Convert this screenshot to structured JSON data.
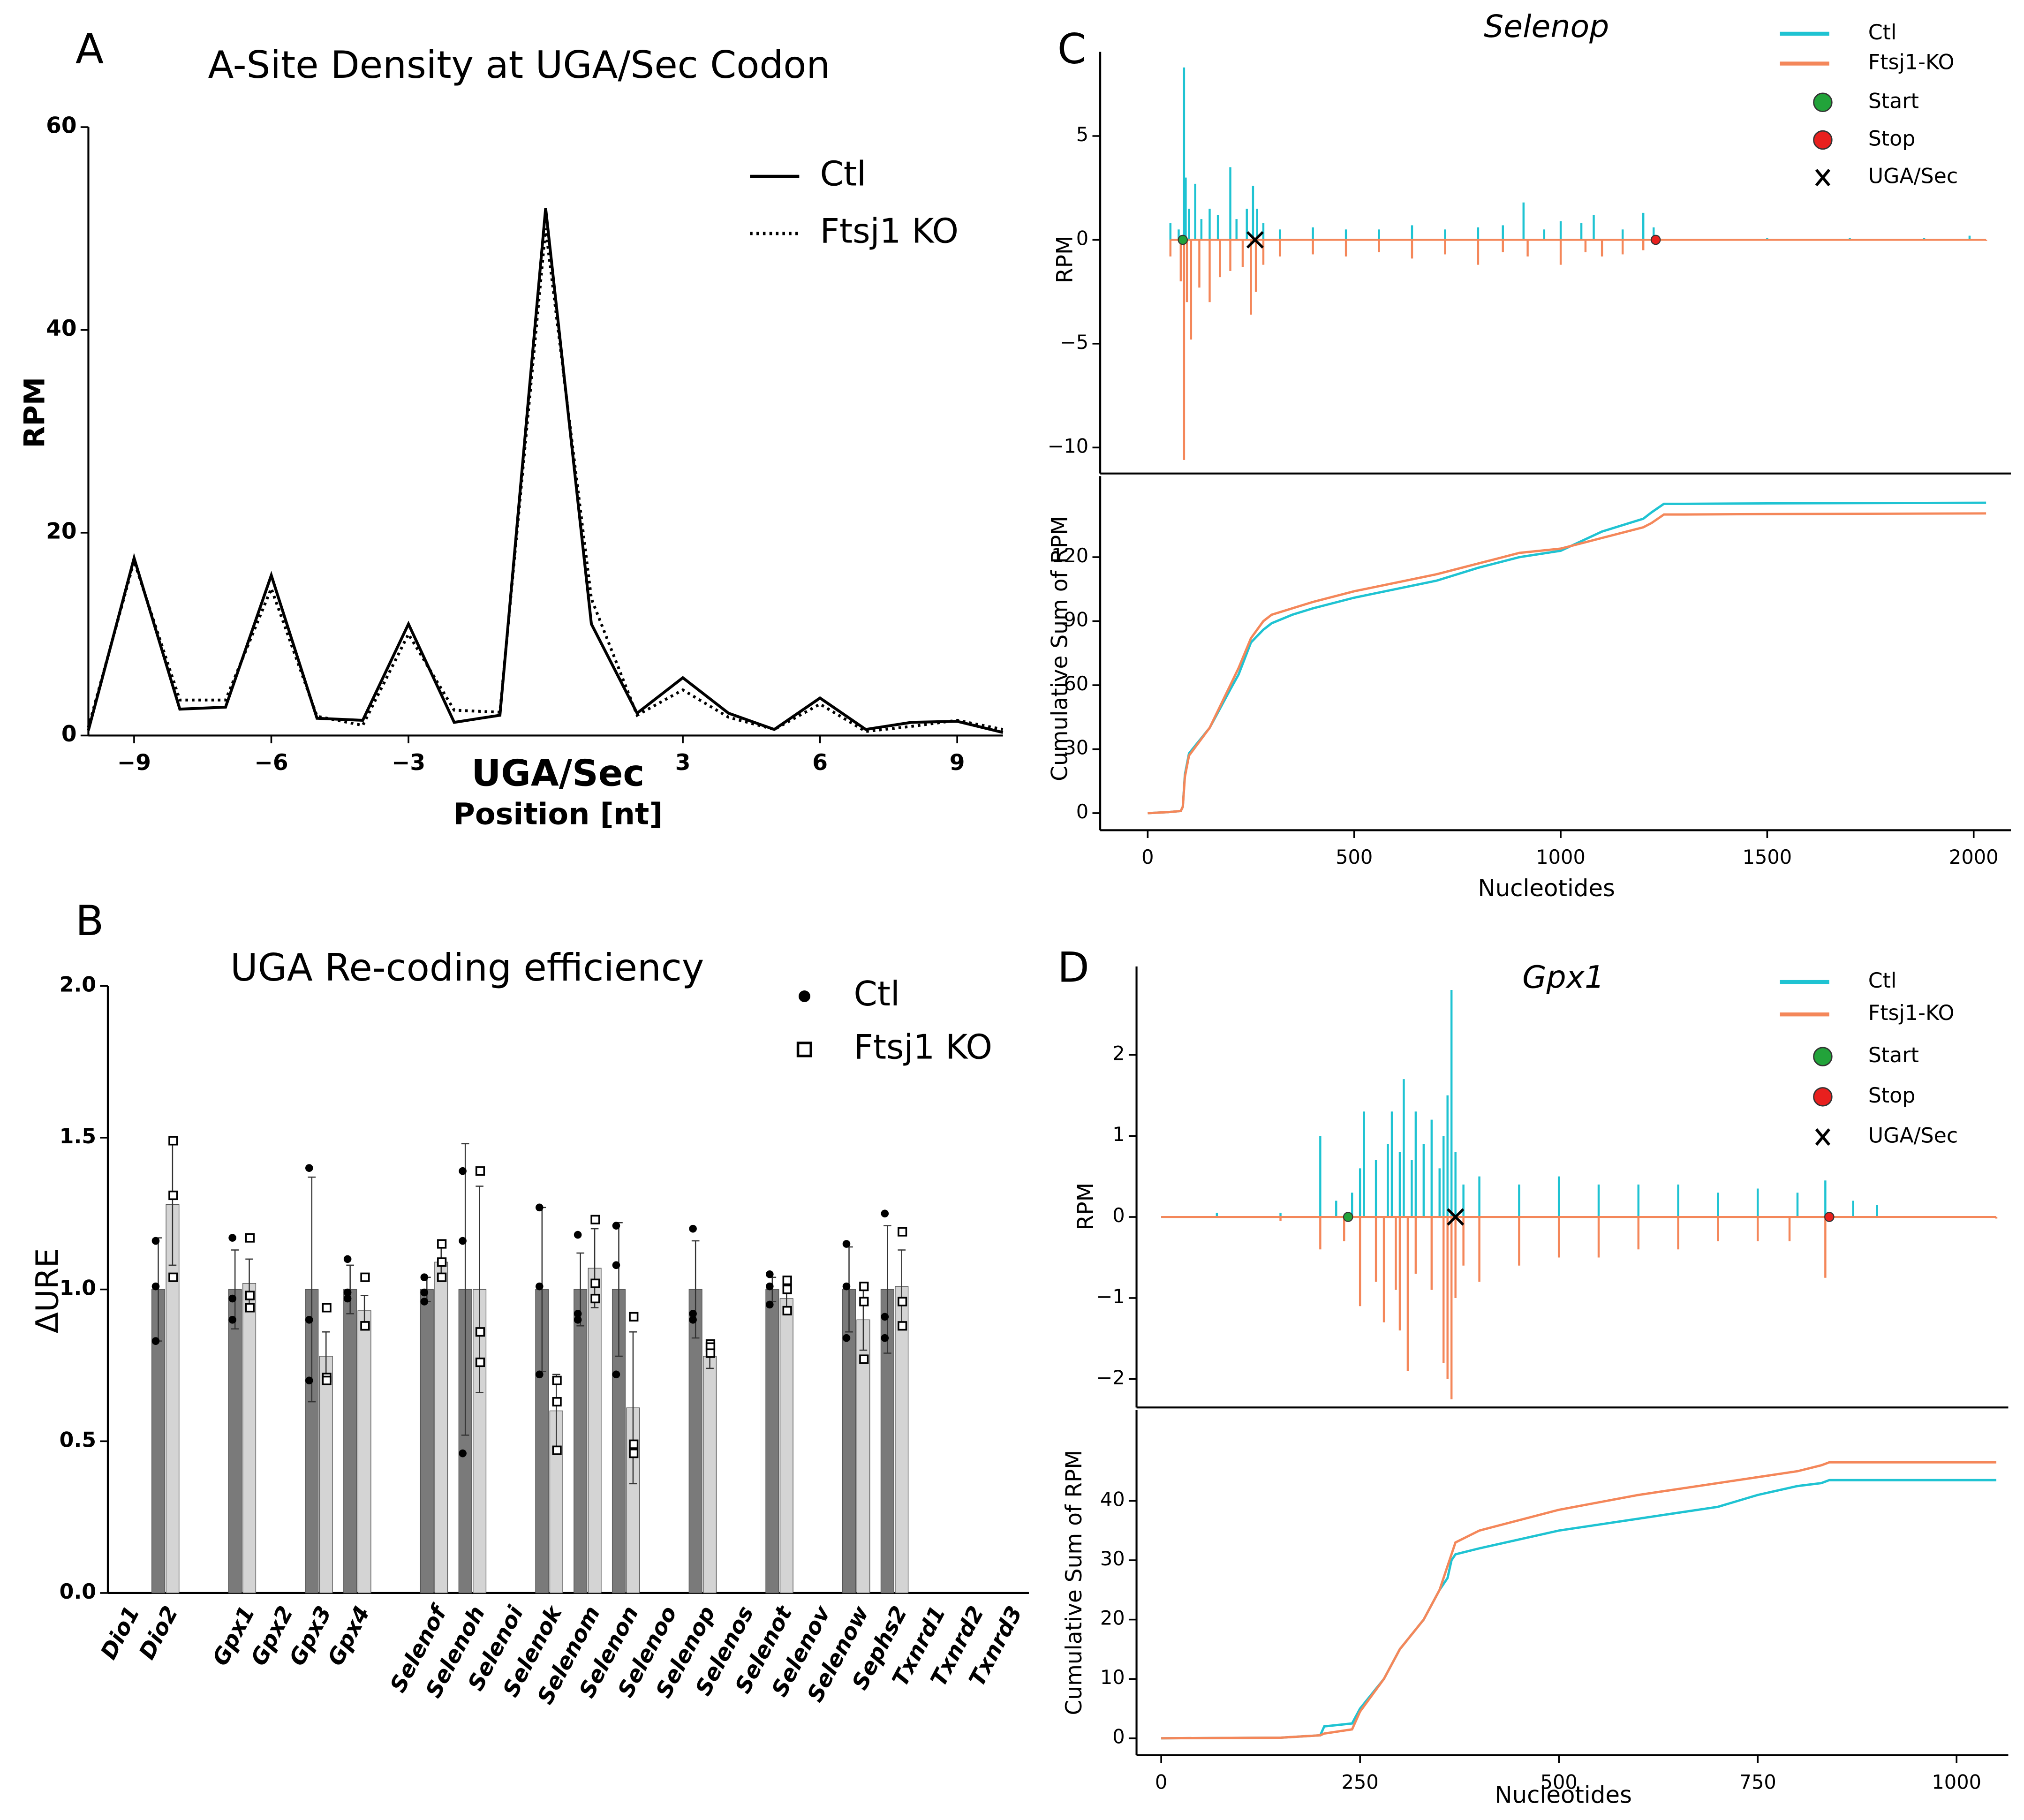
{
  "chart_data": [
    {
      "type": "line",
      "panel": "A",
      "title": "A-Site Density at UGA/Sec Codon",
      "ylabel": "RPM",
      "xlabel": "Position [nt]",
      "annotation": "UGA/Sec",
      "x": [
        -10,
        -9,
        -8,
        -7,
        -6,
        -5,
        -4,
        -3,
        -2,
        -1,
        0,
        1,
        2,
        3,
        4,
        5,
        6,
        7,
        8,
        9,
        10
      ],
      "series": [
        {
          "name": "Ctl",
          "color": "#000000",
          "style": "solid",
          "values": [
            0.5,
            17.5,
            2.6,
            2.8,
            15.8,
            1.7,
            1.5,
            11,
            1.3,
            2,
            52,
            11,
            2.2,
            5.7,
            2.2,
            0.6,
            3.7,
            0.6,
            1.3,
            1.4,
            0.3
          ]
        },
        {
          "name": "Ftsj1 KO",
          "color": "#000000",
          "style": "dotted",
          "values": [
            0.8,
            17.2,
            3.5,
            3.5,
            14.5,
            1.9,
            1.0,
            10,
            2.5,
            2.3,
            50,
            13.5,
            2.0,
            4.5,
            1.8,
            0.6,
            3.1,
            0.4,
            0.9,
            1.5,
            0.6
          ]
        }
      ],
      "xlim": [
        -10,
        10
      ],
      "xticks": [
        {
          "value": -9,
          "label": "−9"
        },
        {
          "value": -6,
          "label": "−6"
        },
        {
          "value": -3,
          "label": "−3"
        },
        3,
        6,
        9
      ],
      "ylim": [
        0,
        60
      ],
      "yticks": [
        0,
        20,
        40,
        60
      ]
    },
    {
      "type": "bar",
      "panel": "B",
      "title": "UGA Re-coding efficiency",
      "ylabel": "ΔURE",
      "categories": [
        "Dio1",
        "Dio2",
        null,
        "Gpx1",
        "Gpx2",
        "Gpx3",
        "Gpx4",
        null,
        "Selenof",
        "Selenoh",
        "Selenoi",
        "Selenok",
        "Selenom",
        "Selenon",
        "Selenoo",
        "Selenop",
        "Selenos",
        "Selenot",
        "Selenov",
        "Selenow",
        "Sephs2",
        "Txnrd1",
        "Txnrd2",
        "Txnrd3"
      ],
      "series": [
        {
          "name": "Ctl",
          "color": "#7a7a7a",
          "marker": "dot",
          "values": [
            null,
            1.0,
            null,
            1.0,
            null,
            1.0,
            1.0,
            null,
            1.0,
            1.0,
            null,
            1.0,
            1.0,
            1.0,
            null,
            1.0,
            null,
            1.0,
            null,
            1.0,
            1.0,
            null,
            null,
            null
          ],
          "errors": [
            null,
            0.17,
            null,
            0.13,
            null,
            0.37,
            0.08,
            null,
            0.04,
            0.48,
            null,
            0.27,
            0.12,
            0.22,
            null,
            0.16,
            null,
            0.04,
            null,
            0.14,
            0.21,
            null,
            null,
            null
          ],
          "points": [
            null,
            [
              1.16,
              1.01,
              0.83
            ],
            null,
            [
              1.17,
              0.97,
              0.9
            ],
            null,
            [
              1.4,
              0.9,
              0.7
            ],
            [
              1.1,
              0.99,
              0.97
            ],
            null,
            [
              1.04,
              0.99,
              0.96
            ],
            [
              1.39,
              1.16,
              0.46
            ],
            null,
            [
              1.27,
              1.01,
              0.72
            ],
            [
              1.18,
              0.92,
              0.9
            ],
            [
              1.21,
              1.08,
              0.72
            ],
            null,
            [
              1.2,
              0.92,
              0.9
            ],
            null,
            [
              1.05,
              1.01,
              0.95
            ],
            null,
            [
              1.15,
              1.01,
              0.84
            ],
            [
              1.25,
              0.91,
              0.84
            ],
            null,
            null,
            null
          ]
        },
        {
          "name": "Ftsj1 KO",
          "color": "#d4d4d4",
          "marker": "square",
          "values": [
            null,
            1.28,
            null,
            1.02,
            null,
            0.78,
            0.93,
            null,
            1.09,
            1.0,
            null,
            0.6,
            1.07,
            0.61,
            null,
            0.78,
            null,
            0.97,
            null,
            0.9,
            1.01,
            null,
            null,
            null
          ],
          "errors": [
            null,
            0.2,
            null,
            0.08,
            null,
            0.08,
            0.05,
            null,
            0.05,
            0.34,
            null,
            0.12,
            0.13,
            0.25,
            null,
            0.04,
            null,
            0.05,
            null,
            0.1,
            0.12,
            null,
            null,
            null
          ],
          "points": [
            null,
            [
              1.49,
              1.31,
              1.04
            ],
            null,
            [
              1.17,
              0.98,
              0.94
            ],
            null,
            [
              0.94,
              0.71,
              0.7
            ],
            [
              1.04,
              0.88,
              0.88
            ],
            null,
            [
              1.15,
              1.09,
              1.04
            ],
            [
              1.39,
              0.86,
              0.76
            ],
            null,
            [
              0.7,
              0.63,
              0.47
            ],
            [
              1.23,
              1.02,
              0.97
            ],
            [
              0.91,
              0.49,
              0.46
            ],
            null,
            [
              0.82,
              0.81,
              0.79
            ],
            null,
            [
              1.03,
              1.0,
              0.93
            ],
            null,
            [
              1.01,
              0.96,
              0.77
            ],
            [
              1.19,
              0.96,
              0.88
            ],
            null,
            null,
            null
          ]
        }
      ],
      "ylim": [
        0,
        2
      ],
      "yticks": [
        {
          "value": 0,
          "label": "0.0"
        },
        0.5,
        {
          "value": 1,
          "label": "1.0"
        },
        1.5,
        {
          "value": 2,
          "label": "2.0"
        }
      ]
    },
    {
      "type": "stem",
      "panel": "C",
      "title": "Selenop",
      "ylabel": "RPM",
      "series": [
        {
          "name": "Ctl",
          "color": "#1fc3d2",
          "x": [
            55,
            75,
            88,
            92,
            100,
            115,
            130,
            150,
            170,
            200,
            215,
            240,
            255,
            265,
            280,
            320,
            400,
            480,
            560,
            640,
            720,
            800,
            860,
            910,
            960,
            1000,
            1050,
            1080,
            1150,
            1200,
            1225,
            1500,
            1700,
            1880,
            1990
          ],
          "values": [
            0.8,
            0.5,
            8.3,
            3,
            1.5,
            2.7,
            1,
            1.5,
            1.2,
            3.5,
            1,
            1.5,
            2.6,
            1.5,
            0.8,
            0.5,
            0.6,
            0.5,
            0.5,
            0.7,
            0.5,
            0.6,
            0.7,
            1.8,
            0.5,
            0.9,
            0.8,
            1.2,
            0.5,
            1.3,
            0.6,
            0.1,
            0.1,
            0.1,
            0.2
          ]
        },
        {
          "name": "Ftsj1-KO",
          "color": "#f4875a",
          "x": [
            55,
            80,
            88,
            95,
            105,
            125,
            150,
            175,
            200,
            230,
            250,
            262,
            280,
            320,
            400,
            480,
            560,
            640,
            720,
            800,
            860,
            920,
            1000,
            1060,
            1100,
            1150,
            1200,
            2030
          ],
          "values": [
            -0.8,
            -2,
            -10.6,
            -3,
            -4.8,
            -2.3,
            -3,
            -1.8,
            -1.5,
            -1.3,
            -3.6,
            -2.5,
            -1.2,
            -0.8,
            -0.7,
            -0.8,
            -0.6,
            -0.9,
            -0.7,
            -1.2,
            -0.6,
            -0.8,
            -1.2,
            -0.6,
            -0.8,
            -0.7,
            -0.5,
            -0.05
          ]
        }
      ],
      "markers": [
        {
          "name": "Start",
          "x": 85,
          "color": "#22a33a",
          "shape": "circle"
        },
        {
          "name": "Stop",
          "x": 1230,
          "color": "#e8201e",
          "shape": "circle"
        },
        {
          "name": "UGA/Sec",
          "x": 260,
          "color": "#000000",
          "shape": "x"
        }
      ],
      "xlim": [
        -115,
        2090
      ],
      "ylim": [
        -11.25,
        9.05
      ],
      "yticks": [
        {
          "value": -10,
          "label": "−10"
        },
        {
          "value": -5,
          "label": "−5"
        },
        0,
        5
      ]
    },
    {
      "type": "line",
      "ylabel": "Cumulative Sum of RPM",
      "xlabel": "Nucleotides",
      "x": [
        0,
        50,
        80,
        85,
        90,
        100,
        150,
        200,
        220,
        250,
        280,
        300,
        350,
        400,
        500,
        600,
        700,
        800,
        900,
        1000,
        1100,
        1200,
        1220,
        1250,
        1300,
        1500,
        2030
      ],
      "series": [
        {
          "name": "Ctl",
          "color": "#1fc3d2",
          "style": "solid",
          "values": [
            0,
            0.5,
            1,
            3,
            18,
            28,
            40,
            58,
            65,
            80,
            86,
            89,
            93,
            96,
            101,
            105,
            109,
            115,
            120,
            123,
            132,
            138,
            141,
            145,
            145,
            145.2,
            145.5
          ]
        },
        {
          "name": "Ftsj1-KO",
          "color": "#f4875a",
          "style": "solid",
          "values": [
            0,
            0.5,
            1,
            3,
            17,
            27,
            40,
            60,
            68,
            82,
            90,
            93,
            96,
            99,
            104,
            108,
            112,
            117,
            122,
            124,
            129,
            134,
            136,
            140,
            140,
            140.2,
            140.5
          ]
        }
      ],
      "xlim": [
        -115,
        2090
      ],
      "xticks": [
        0,
        500,
        1000,
        1500,
        2000
      ],
      "ylim": [
        -8,
        158
      ],
      "yticks": [
        0,
        30,
        60,
        90,
        120
      ]
    },
    {
      "type": "stem",
      "panel": "D",
      "title": "Gpx1",
      "ylabel": "RPM",
      "series": [
        {
          "name": "Ctl",
          "color": "#1fc3d2",
          "x": [
            0,
            70,
            150,
            200,
            220,
            240,
            250,
            255,
            270,
            285,
            290,
            300,
            305,
            315,
            320,
            330,
            340,
            350,
            355,
            360,
            365,
            370,
            380,
            400,
            450,
            500,
            550,
            600,
            650,
            700,
            750,
            800,
            835,
            870,
            900
          ],
          "values": [
            0,
            0.05,
            0.05,
            1.0,
            0.2,
            0.3,
            0.6,
            1.3,
            0.7,
            0.9,
            1.3,
            0.8,
            1.7,
            0.7,
            1.3,
            0.9,
            1.2,
            0.6,
            1.0,
            1.5,
            2.8,
            0.8,
            0.4,
            0.5,
            0.4,
            0.5,
            0.4,
            0.4,
            0.4,
            0.3,
            0.35,
            0.3,
            0.45,
            0.2,
            0.15
          ]
        },
        {
          "name": "Ftsj1-KO",
          "color": "#f4875a",
          "x": [
            0,
            150,
            200,
            230,
            250,
            270,
            280,
            295,
            300,
            310,
            320,
            340,
            355,
            360,
            365,
            370,
            380,
            400,
            450,
            500,
            550,
            600,
            650,
            700,
            750,
            790,
            835,
            1050
          ],
          "values": [
            0,
            -0.05,
            -0.4,
            -0.3,
            -1.1,
            -0.8,
            -1.3,
            -0.9,
            -1.4,
            -1.9,
            -0.7,
            -0.9,
            -1.8,
            -2.0,
            -2.25,
            -1.0,
            -0.6,
            -0.8,
            -0.6,
            -0.5,
            -0.5,
            -0.4,
            -0.4,
            -0.3,
            -0.3,
            -0.3,
            -0.75,
            -0.02
          ]
        }
      ],
      "markers": [
        {
          "name": "Start",
          "x": 235,
          "color": "#22a33a",
          "shape": "circle"
        },
        {
          "name": "Stop",
          "x": 840,
          "color": "#e8201e",
          "shape": "circle"
        },
        {
          "name": "UGA/Sec",
          "x": 370,
          "color": "#000000",
          "shape": "x"
        }
      ],
      "xlim": [
        -31,
        1065
      ],
      "ylim": [
        -2.35,
        3.09
      ],
      "yticks": [
        {
          "value": -2,
          "label": "−2"
        },
        {
          "value": -1,
          "label": "−1"
        },
        0,
        1,
        2
      ]
    },
    {
      "type": "line",
      "ylabel": "Cumulative Sum of RPM",
      "xlabel": "Nucleotides",
      "x": [
        0,
        150,
        200,
        205,
        240,
        250,
        280,
        300,
        330,
        350,
        360,
        365,
        370,
        400,
        500,
        600,
        700,
        750,
        800,
        830,
        840,
        1050
      ],
      "series": [
        {
          "name": "Ctl",
          "color": "#1fc3d2",
          "style": "solid",
          "values": [
            0,
            0.1,
            0.5,
            2,
            2.5,
            5,
            10,
            15,
            20,
            25,
            27,
            30,
            31,
            32,
            35,
            37,
            39,
            41,
            42.5,
            43,
            43.5,
            43.5
          ]
        },
        {
          "name": "Ftsj1-KO",
          "color": "#f4875a",
          "style": "solid",
          "values": [
            0,
            0.1,
            0.5,
            0.8,
            1.5,
            4.5,
            10,
            15,
            20,
            25,
            29,
            31,
            33,
            35,
            38.5,
            41,
            43,
            44,
            45,
            46,
            46.5,
            46.5
          ]
        }
      ],
      "xlim": [
        -31,
        1065
      ],
      "xticks": [
        0,
        250,
        500,
        750,
        1000
      ],
      "ylim": [
        -2.84,
        55.3
      ],
      "yticks": [
        0,
        10,
        20,
        30,
        40
      ]
    }
  ]
}
